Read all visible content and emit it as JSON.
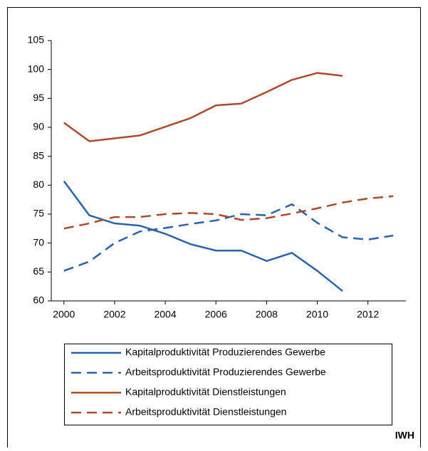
{
  "chart_data": {
    "type": "line",
    "x": [
      2000,
      2001,
      2002,
      2003,
      2004,
      2005,
      2006,
      2007,
      2008,
      2009,
      2010,
      2011,
      2012,
      2013
    ],
    "series": [
      {
        "name": "Kapitalproduktivität Produzierendes Gewerbe",
        "color": "#2a62b0",
        "line_style": "solid",
        "values": [
          80.7,
          74.8,
          73.4,
          73.0,
          71.6,
          69.8,
          68.7,
          68.7,
          66.9,
          68.3,
          65.2,
          61.7,
          null,
          null
        ]
      },
      {
        "name": "Arbeitsproduktivität Produzierendes Gewerbe",
        "color": "#2a62b0",
        "line_style": "dashed",
        "values": [
          65.2,
          66.8,
          70.0,
          72.0,
          72.6,
          73.3,
          73.9,
          75.0,
          74.8,
          76.7,
          73.5,
          71.0,
          70.6,
          71.3
        ]
      },
      {
        "name": "Kapitalproduktivität Dienstleistungen",
        "color": "#b0482c",
        "line_style": "solid",
        "values": [
          90.8,
          87.6,
          88.1,
          88.6,
          90.1,
          91.6,
          93.8,
          94.1,
          96.1,
          98.2,
          99.4,
          98.9,
          null,
          null
        ]
      },
      {
        "name": "Arbeitsproduktivität Dienstleistungen",
        "color": "#b0482c",
        "line_style": "dashed",
        "values": [
          72.5,
          73.4,
          74.5,
          74.5,
          75.0,
          75.2,
          75.0,
          74.0,
          74.3,
          75.1,
          76.0,
          77.0,
          77.7,
          78.1
        ]
      }
    ],
    "xlim": [
      1999.5,
      2013.5
    ],
    "xticks": [
      2000,
      2002,
      2004,
      2006,
      2008,
      2010,
      2012
    ],
    "ylim": [
      60,
      105
    ],
    "yticks": [
      60,
      65,
      70,
      75,
      80,
      85,
      90,
      95,
      100,
      105
    ],
    "source": "IWH"
  }
}
